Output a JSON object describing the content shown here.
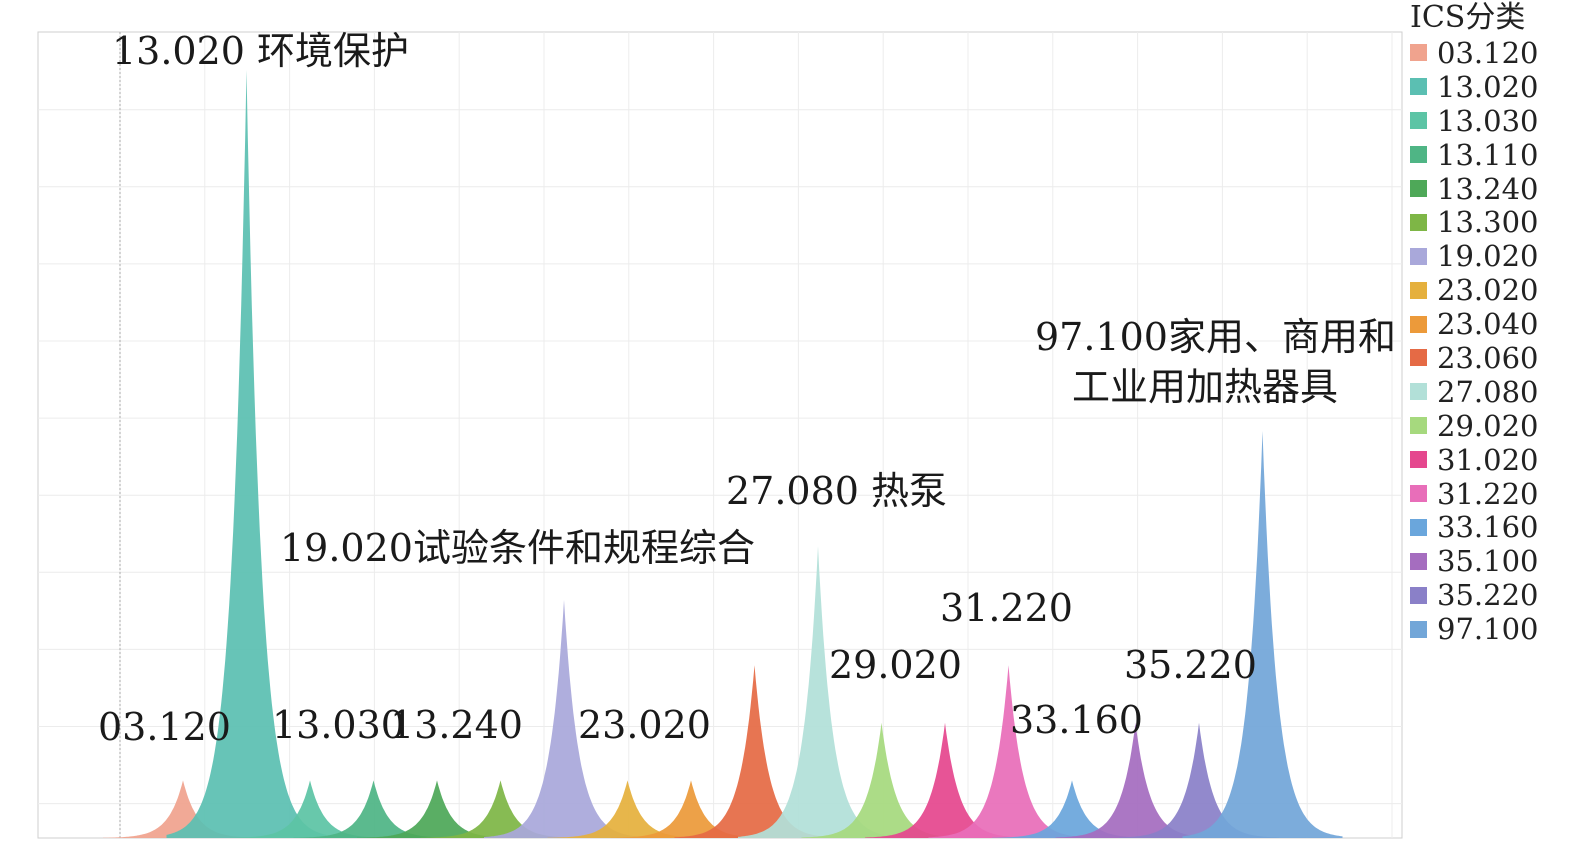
{
  "chart_data": {
    "type": "area",
    "title": "",
    "xlabel": "",
    "ylabel": "",
    "grid": true,
    "legend_position": "right",
    "legend_title": "ICS分类",
    "series": [
      {
        "name": "03.120",
        "color": "#f0a38e",
        "peak": 0.075
      },
      {
        "name": "13.020",
        "color": "#5bbfb2",
        "peak": 1.0
      },
      {
        "name": "13.030",
        "color": "#5cc4a5",
        "peak": 0.075
      },
      {
        "name": "13.110",
        "color": "#4fb585",
        "peak": 0.075
      },
      {
        "name": "13.240",
        "color": "#4ea858",
        "peak": 0.075
      },
      {
        "name": "13.300",
        "color": "#7eb646",
        "peak": 0.075
      },
      {
        "name": "19.020",
        "color": "#a9a8da",
        "peak": 0.31
      },
      {
        "name": "23.020",
        "color": "#e5b03d",
        "peak": 0.075
      },
      {
        "name": "23.040",
        "color": "#ec9a3a",
        "peak": 0.075
      },
      {
        "name": "23.060",
        "color": "#e56a45",
        "peak": 0.225
      },
      {
        "name": "27.080",
        "color": "#b2e0d8",
        "peak": 0.38
      },
      {
        "name": "29.020",
        "color": "#a6d97e",
        "peak": 0.15
      },
      {
        "name": "31.020",
        "color": "#e5478e",
        "peak": 0.15
      },
      {
        "name": "31.220",
        "color": "#e86eb9",
        "peak": 0.225
      },
      {
        "name": "33.160",
        "color": "#6aa6dc",
        "peak": 0.075
      },
      {
        "name": "35.100",
        "color": "#a56dbf",
        "peak": 0.15
      },
      {
        "name": "35.220",
        "color": "#8a80c8",
        "peak": 0.15
      },
      {
        "name": "97.100",
        "color": "#72a6d8",
        "peak": 0.53
      }
    ],
    "annotations": [
      {
        "series": "13.020",
        "lines": [
          "13.020 环境保护"
        ]
      },
      {
        "series": "19.020",
        "lines": [
          "19.020试验条件和规程综合"
        ]
      },
      {
        "series": "27.080",
        "lines": [
          "27.080 热泵"
        ]
      },
      {
        "series": "97.100",
        "lines": [
          "97.100家用、商用和",
          "工业用加热器具"
        ]
      },
      {
        "series": "03.120",
        "lines": [
          "03.120"
        ]
      },
      {
        "series": "13.030",
        "lines": [
          "13.030"
        ]
      },
      {
        "series": "13.240",
        "lines": [
          "13.240"
        ]
      },
      {
        "series": "23.020",
        "lines": [
          "23.020"
        ]
      },
      {
        "series": "29.020",
        "lines": [
          "29.020"
        ]
      },
      {
        "series": "31.220",
        "lines": [
          "31.220"
        ]
      },
      {
        "series": "33.160",
        "lines": [
          "33.160"
        ]
      },
      {
        "series": "35.220",
        "lines": [
          "35.220"
        ]
      }
    ]
  }
}
